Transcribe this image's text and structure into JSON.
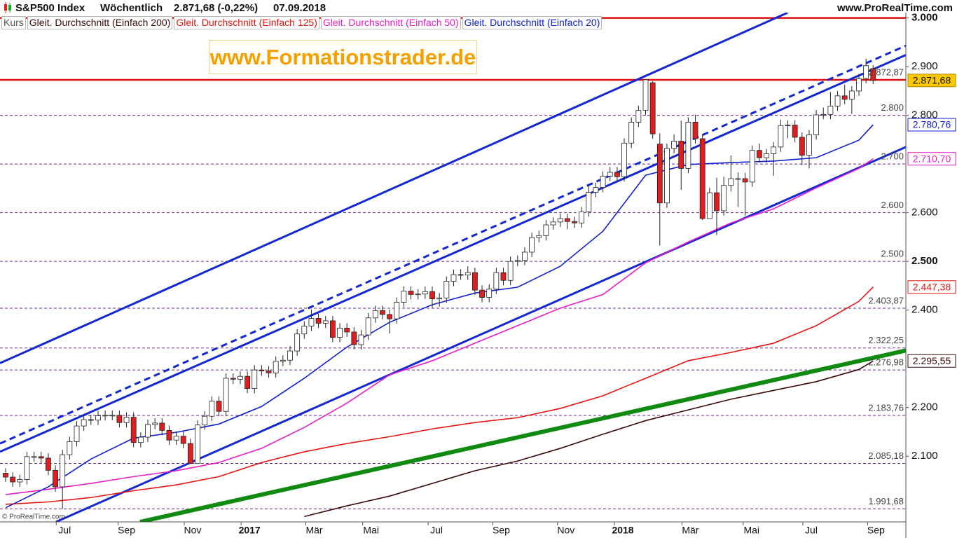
{
  "chart_data": {
    "type": "candlestick",
    "title": "S&P500 Index",
    "period": "Wöchentlich",
    "quote": "2.871,68 (-0,22%)",
    "date": "07.09.2018",
    "source": "www.ProRealTime.com",
    "source_small": "© ProRealTime.com",
    "watermark": "www.Formationstrader.de",
    "ylim": [
      1965,
      3011
    ],
    "yticks": [
      {
        "value": 3000,
        "label": "3.000"
      },
      {
        "value": 2900,
        "label": "2.900"
      },
      {
        "value": 2800,
        "label": "2.800"
      },
      {
        "value": 2600,
        "label": "2.600"
      },
      {
        "value": 2500,
        "label": "2.500"
      },
      {
        "value": 2400,
        "label": "2.400"
      },
      {
        "value": 2200,
        "label": "2.200"
      },
      {
        "value": 2100,
        "label": "2.100"
      }
    ],
    "xticks": [
      {
        "value": 8.3,
        "label": "Jul"
      },
      {
        "value": 17,
        "label": "Sep"
      },
      {
        "value": 26.3,
        "label": "Nov"
      },
      {
        "value": 34.3,
        "label": "2017"
      },
      {
        "value": 43.4,
        "label": "Mär"
      },
      {
        "value": 51.4,
        "label": "Mai"
      },
      {
        "value": 60.6,
        "label": "Jul"
      },
      {
        "value": 69.7,
        "label": "Sep"
      },
      {
        "value": 78.8,
        "label": "Nov"
      },
      {
        "value": 86.8,
        "label": "2018"
      },
      {
        "value": 96.3,
        "label": "Mär"
      },
      {
        "value": 104.9,
        "label": "Mai"
      },
      {
        "value": 113.3,
        "label": "Jul"
      },
      {
        "value": 122.4,
        "label": "Sep"
      }
    ],
    "candles": {
      "name": "Kurs",
      "up_color": "#ffffff",
      "down_color": "#dd1f1f",
      "close_label": "2.871,68",
      "open": [
        2065,
        2057,
        2047,
        2052,
        2099,
        2099,
        2096,
        2071,
        2037,
        2103,
        2130,
        2162,
        2175,
        2174,
        2183,
        2184,
        2184,
        2169,
        2180,
        2128,
        2139,
        2165,
        2168,
        2153,
        2133,
        2141,
        2126,
        2085,
        2164,
        2182,
        2213,
        2192,
        2260,
        2258,
        2264,
        2239,
        2277,
        2275,
        2271,
        2295,
        2297,
        2316,
        2351,
        2367,
        2383,
        2373,
        2378,
        2344,
        2363,
        2355,
        2329,
        2349,
        2384,
        2399,
        2391,
        2382,
        2416,
        2439,
        2432,
        2433,
        2438,
        2423,
        2425,
        2459,
        2473,
        2472,
        2477,
        2441,
        2426,
        2443,
        2477,
        2461,
        2500,
        2502,
        2519,
        2549,
        2553,
        2575,
        2581,
        2588,
        2582,
        2579,
        2602,
        2642,
        2652,
        2675,
        2683,
        2674,
        2743,
        2786,
        2810,
        2867,
        2741,
        2620,
        2732,
        2747,
        2691,
        2786,
        2752,
        2588,
        2641,
        2604,
        2656,
        2670,
        2670,
        2663,
        2728,
        2713,
        2721,
        2735,
        2779,
        2780,
        2755,
        2718,
        2760,
        2801,
        2802,
        2819,
        2840,
        2833,
        2850,
        2876,
        2896
      ],
      "high": [
        2075,
        2067,
        2062,
        2109,
        2109,
        2109,
        2106,
        2081,
        2113,
        2140,
        2172,
        2185,
        2185,
        2193,
        2194,
        2194,
        2194,
        2190,
        2190,
        2149,
        2175,
        2178,
        2178,
        2163,
        2151,
        2151,
        2136,
        2174,
        2192,
        2223,
        2223,
        2270,
        2270,
        2274,
        2274,
        2287,
        2287,
        2285,
        2305,
        2307,
        2326,
        2361,
        2377,
        2400.98,
        2393,
        2388,
        2388,
        2373,
        2373,
        2365,
        2359,
        2394,
        2409,
        2409,
        2401,
        2426,
        2449,
        2449,
        2443,
        2448,
        2448,
        2435,
        2469,
        2483,
        2484,
        2490,
        2487,
        2451,
        2453,
        2487,
        2487,
        2510,
        2512,
        2529,
        2559,
        2563,
        2585,
        2591,
        2598,
        2598,
        2592,
        2612,
        2657,
        2662,
        2685,
        2694,
        2694,
        2753,
        2796,
        2820,
        2872.87,
        2870,
        2763,
        2742,
        2761,
        2789,
        2796,
        2801,
        2762,
        2651,
        2672,
        2674,
        2718,
        2683,
        2682,
        2738,
        2742,
        2731,
        2745,
        2791,
        2790,
        2790,
        2765,
        2770,
        2811,
        2816,
        2848,
        2850,
        2863,
        2860,
        2885,
        2916.5,
        2903
      ],
      "low": [
        2047,
        2037,
        2037,
        2042,
        2089,
        2086,
        2061,
        2027,
        1991.68,
        2093,
        2120,
        2152,
        2164,
        2164,
        2173,
        2174,
        2159,
        2159,
        2118,
        2118,
        2129,
        2155,
        2143,
        2123,
        2123,
        2116,
        2083.79,
        2084,
        2154,
        2172,
        2182,
        2182,
        2248,
        2248,
        2229,
        2229,
        2265,
        2261,
        2261,
        2285,
        2287,
        2306,
        2341,
        2357,
        2363,
        2363,
        2334,
        2334,
        2345,
        2319,
        2319,
        2339,
        2374,
        2381,
        2352,
        2372,
        2406,
        2422,
        2422,
        2423,
        2405,
        2407,
        2415,
        2449,
        2462,
        2462,
        2431,
        2416,
        2416,
        2433,
        2451,
        2451,
        2490,
        2492,
        2509,
        2539,
        2543,
        2565,
        2571,
        2566,
        2569,
        2569,
        2592,
        2632,
        2642,
        2665,
        2664,
        2664,
        2733,
        2776,
        2800,
        2752,
        2532.69,
        2610,
        2722,
        2647,
        2681,
        2742,
        2585,
        2594,
        2553.8,
        2594,
        2644,
        2612,
        2594,
        2653,
        2703,
        2703,
        2676,
        2725,
        2753,
        2745,
        2698,
        2691,
        2750,
        2792,
        2792,
        2809,
        2823,
        2803,
        2840,
        2866,
        2864
      ],
      "close": [
        2057,
        2047,
        2052,
        2099,
        2099,
        2096,
        2071,
        2037,
        2103,
        2130,
        2162,
        2175,
        2174,
        2183,
        2184,
        2184,
        2169,
        2180,
        2128,
        2139,
        2165,
        2168,
        2153,
        2133,
        2141,
        2126,
        2085,
        2164,
        2182,
        2213,
        2192,
        2260,
        2258,
        2264,
        2239,
        2277,
        2275,
        2271,
        2295,
        2297,
        2316,
        2351,
        2367,
        2383,
        2373,
        2378,
        2344,
        2363,
        2355,
        2329,
        2349,
        2384,
        2399,
        2391,
        2382,
        2416,
        2439,
        2432,
        2433,
        2438,
        2423,
        2425,
        2459,
        2473,
        2472,
        2477,
        2441,
        2426,
        2443,
        2477,
        2461,
        2500,
        2502,
        2519,
        2549,
        2553,
        2575,
        2581,
        2588,
        2582,
        2579,
        2602,
        2642,
        2652,
        2675,
        2683,
        2674,
        2743,
        2786,
        2810,
        2873,
        2762,
        2620,
        2732,
        2747,
        2691,
        2786,
        2752,
        2588,
        2641,
        2604,
        2656,
        2670,
        2670,
        2663,
        2728,
        2713,
        2721,
        2735,
        2779,
        2780,
        2755,
        2718,
        2760,
        2801,
        2802,
        2819,
        2840,
        2833,
        2850,
        2875,
        2902,
        2871.68
      ]
    },
    "series": [
      {
        "name": "Gleit. Durchschnitt (Einfach 200)",
        "color": "#3a0a0a",
        "end_label": "2.295,55",
        "x": [
          42,
          48,
          54,
          60,
          66,
          72,
          78,
          84,
          90,
          96,
          102,
          108,
          114,
          120,
          122
        ],
        "values": [
          1976,
          1998,
          2018,
          2044,
          2070,
          2090,
          2116,
          2145,
          2173,
          2195,
          2217,
          2235,
          2253,
          2278,
          2295.55
        ]
      },
      {
        "name": "Gleit. Durchschnitt (Einfach 125)",
        "color": "#e8140f",
        "end_label": "2.447,38",
        "x": [
          0,
          6,
          12,
          18,
          24,
          30,
          36,
          42,
          48,
          54,
          60,
          66,
          72,
          78,
          84,
          90,
          96,
          102,
          108,
          114,
          120,
          122
        ],
        "values": [
          2001,
          2006,
          2015,
          2029,
          2041,
          2058,
          2087,
          2109,
          2126,
          2140,
          2156,
          2169,
          2179,
          2198,
          2224,
          2260,
          2296,
          2313,
          2332,
          2368,
          2418,
          2447.38
        ]
      },
      {
        "name": "Gleit. Durchschnitt (Einfach 50)",
        "color": "#e81ec8",
        "end_label": "2.710,70",
        "x": [
          0,
          6,
          12,
          18,
          24,
          30,
          36,
          42,
          48,
          54,
          60,
          66,
          72,
          78,
          84,
          90,
          96,
          102,
          108,
          114,
          120,
          122
        ],
        "values": [
          2021,
          2032,
          2044,
          2058,
          2070,
          2087,
          2116,
          2159,
          2209,
          2267,
          2296,
          2332,
          2368,
          2404,
          2432,
          2497,
          2540,
          2579,
          2608,
          2651,
          2691,
          2710.7
        ]
      },
      {
        "name": "Gleit. Durchschnitt (Einfach 20)",
        "color": "#1020d0",
        "end_label": "2.780,76",
        "x": [
          0,
          6,
          12,
          18,
          24,
          30,
          36,
          42,
          48,
          54,
          60,
          66,
          72,
          78,
          84,
          90,
          96,
          102,
          108,
          114,
          120,
          122
        ],
        "values": [
          1994,
          2037,
          2094,
          2137,
          2149,
          2166,
          2202,
          2260,
          2324,
          2375,
          2411,
          2435,
          2447,
          2490,
          2562,
          2677,
          2699,
          2703,
          2706,
          2713,
          2749,
          2780.76
        ]
      }
    ],
    "trendlines": [
      {
        "x": [
          -0.79,
          110
        ],
        "values": [
          2291,
          3011
        ],
        "color": "#1428d2",
        "width": 3,
        "style": "solid"
      },
      {
        "x": [
          -0.79,
          126.6
        ],
        "values": [
          2126,
          2943
        ],
        "color": "#1428d2",
        "width": 3,
        "style": "dashed"
      },
      {
        "x": [
          -0.79,
          126.6
        ],
        "values": [
          2109,
          2924
        ],
        "color": "#1428d2",
        "width": 3,
        "style": "solid"
      },
      {
        "x": [
          7.09,
          126.6
        ],
        "values": [
          1965,
          2735
        ],
        "color": "#1428d2",
        "width": 3,
        "style": "solid"
      },
      {
        "x": [
          18.9,
          126.6
        ],
        "values": [
          1965,
          2317
        ],
        "color": "#118a11",
        "width": 6,
        "style": "solid"
      }
    ],
    "hlines": [
      {
        "value": 3000,
        "color": "#e01010",
        "style": "solid"
      },
      {
        "value": 2872.87,
        "label": "2.872,87",
        "color": "#e01010",
        "style": "solid"
      },
      {
        "value": 2800,
        "label": "2.800",
        "color": "#6a2a8a",
        "style": "dashed"
      },
      {
        "value": 2700,
        "label": "2.700",
        "color": "#6a2a8a",
        "style": "dashed"
      },
      {
        "value": 2600,
        "label": "2.600",
        "color": "#6a2a8a",
        "style": "dashed"
      },
      {
        "value": 2500,
        "label": "2.500",
        "color": "#6a2a8a",
        "style": "dashed"
      },
      {
        "value": 2403.87,
        "label": "2.403,87",
        "color": "#6a2a8a",
        "style": "dashed"
      },
      {
        "value": 2322.25,
        "label": "2.322,25",
        "color": "#6a2a8a",
        "style": "dashed"
      },
      {
        "value": 2276.98,
        "label": "2.276,98",
        "color": "#6a2a8a",
        "style": "dashed"
      },
      {
        "value": 2183.76,
        "label": "2.183,76",
        "color": "#6a2a8a",
        "style": "dashed"
      },
      {
        "value": 2085.18,
        "label": "2.085,18",
        "color": "#6a2a8a",
        "style": "dashed"
      },
      {
        "value": 1991.68,
        "label": "1.991,68",
        "color": "#6a2a8a",
        "style": "dashed"
      }
    ]
  }
}
